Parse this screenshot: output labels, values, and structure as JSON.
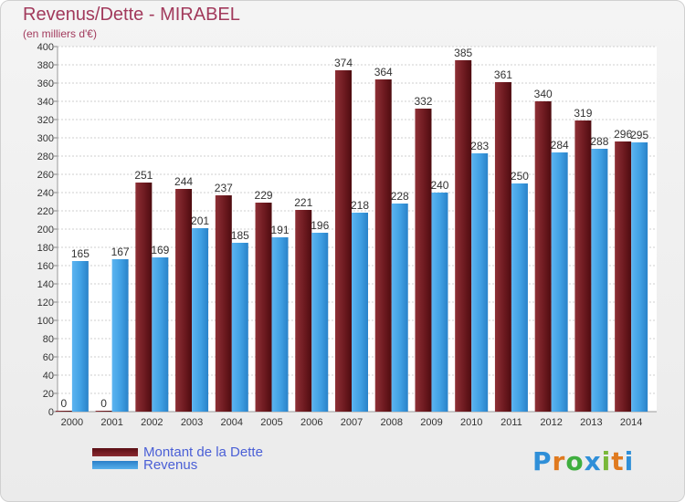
{
  "chart_data": {
    "type": "bar",
    "title": "Revenus/Dette - MIRABEL",
    "subtitle": "(en milliers d'€)",
    "categories": [
      "2000",
      "2001",
      "2002",
      "2003",
      "2004",
      "2005",
      "2006",
      "2007",
      "2008",
      "2009",
      "2010",
      "2011",
      "2012",
      "2013",
      "2014"
    ],
    "series": [
      {
        "name": "Montant de la Dette",
        "color": "#7a1c22",
        "values": [
          0,
          0,
          251,
          244,
          237,
          229,
          221,
          374,
          364,
          332,
          385,
          361,
          340,
          319,
          296
        ]
      },
      {
        "name": "Revenus",
        "color": "#3f9fe3",
        "values": [
          165,
          167,
          169,
          201,
          185,
          191,
          196,
          218,
          228,
          240,
          283,
          250,
          284,
          288,
          295
        ]
      }
    ],
    "ylim": [
      0,
      400
    ],
    "ytick_step": 20,
    "grid": true,
    "legend_position": "bottom-left"
  },
  "logo": {
    "text": "Proxiti",
    "letter_colors": [
      "#2f8fd8",
      "#e07a1f",
      "#3fae3f",
      "#2f8fd8",
      "#7ab83a",
      "#e07a1f",
      "#2f8fd8"
    ]
  }
}
